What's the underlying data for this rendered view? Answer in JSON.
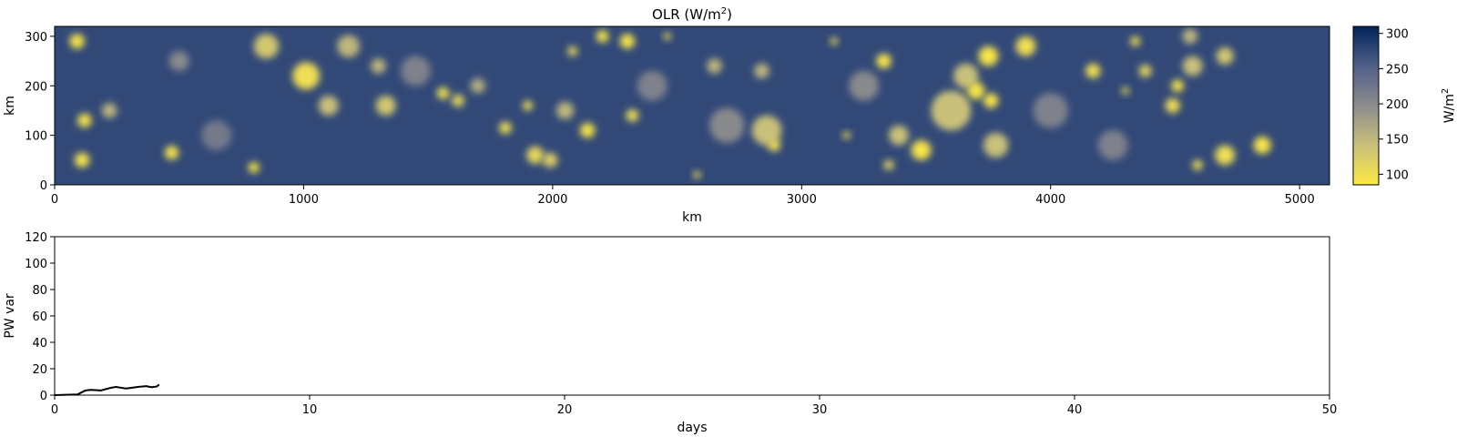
{
  "colors": {
    "colormap": [
      "#fde944",
      "#c8c07a",
      "#8c8c8c",
      "#50608a",
      "#00245a"
    ],
    "line": "#000000",
    "axes": "#000000",
    "background": "#ffffff"
  },
  "chart_data": [
    {
      "type": "heatmap",
      "title_main": "OLR (W/m",
      "title_sup": "2",
      "title_close": ")",
      "xlabel": "km",
      "ylabel": "km",
      "xlim": [
        0,
        5120
      ],
      "ylim": [
        0,
        320
      ],
      "xticks": [
        "0",
        "1000",
        "2000",
        "3000",
        "4000",
        "5000"
      ],
      "yticks": [
        "0",
        "100",
        "200",
        "300"
      ],
      "colorbar": {
        "label_main": "W/m",
        "label_sup": "2",
        "range": [
          85,
          310
        ],
        "ticks": [
          "100",
          "150",
          "200",
          "250",
          "300"
        ],
        "tick_values": [
          100,
          150,
          200,
          250,
          300
        ]
      },
      "background_value": 275,
      "clouds": [
        [
          90,
          290,
          30,
          90
        ],
        [
          120,
          130,
          28,
          90
        ],
        [
          110,
          50,
          30,
          90
        ],
        [
          220,
          150,
          30,
          150
        ],
        [
          470,
          65,
          28,
          90
        ],
        [
          800,
          35,
          22,
          90
        ],
        [
          850,
          280,
          50,
          130
        ],
        [
          1010,
          220,
          55,
          100
        ],
        [
          1100,
          160,
          40,
          140
        ],
        [
          1180,
          280,
          45,
          150
        ],
        [
          1300,
          240,
          30,
          150
        ],
        [
          1330,
          160,
          40,
          130
        ],
        [
          1560,
          185,
          25,
          100
        ],
        [
          1620,
          170,
          25,
          110
        ],
        [
          1700,
          200,
          30,
          160
        ],
        [
          1810,
          115,
          25,
          100
        ],
        [
          1900,
          160,
          20,
          100
        ],
        [
          1930,
          60,
          35,
          110
        ],
        [
          1990,
          50,
          30,
          120
        ],
        [
          2050,
          150,
          35,
          150
        ],
        [
          2080,
          270,
          20,
          110
        ],
        [
          2140,
          110,
          30,
          90
        ],
        [
          2200,
          300,
          25,
          90
        ],
        [
          2300,
          290,
          30,
          90
        ],
        [
          2320,
          140,
          25,
          100
        ],
        [
          2460,
          300,
          15,
          100
        ],
        [
          2580,
          20,
          15,
          100
        ],
        [
          2650,
          240,
          30,
          150
        ],
        [
          2840,
          230,
          30,
          150
        ],
        [
          2860,
          110,
          60,
          140
        ],
        [
          2890,
          80,
          25,
          100
        ],
        [
          3130,
          290,
          15,
          100
        ],
        [
          3180,
          100,
          15,
          100
        ],
        [
          3330,
          250,
          30,
          90
        ],
        [
          3350,
          40,
          20,
          110
        ],
        [
          3390,
          100,
          40,
          140
        ],
        [
          3480,
          70,
          40,
          90
        ],
        [
          3600,
          150,
          80,
          140
        ],
        [
          3660,
          220,
          50,
          140
        ],
        [
          3700,
          190,
          35,
          90
        ],
        [
          3750,
          260,
          40,
          90
        ],
        [
          3760,
          170,
          30,
          90
        ],
        [
          3780,
          80,
          50,
          140
        ],
        [
          3900,
          280,
          40,
          100
        ],
        [
          4170,
          230,
          30,
          100
        ],
        [
          4300,
          190,
          15,
          100
        ],
        [
          4340,
          290,
          20,
          100
        ],
        [
          4380,
          230,
          25,
          110
        ],
        [
          4490,
          160,
          30,
          100
        ],
        [
          4510,
          200,
          25,
          90
        ],
        [
          4560,
          300,
          30,
          150
        ],
        [
          4570,
          240,
          40,
          140
        ],
        [
          4590,
          40,
          20,
          90
        ],
        [
          4700,
          260,
          35,
          130
        ],
        [
          4700,
          60,
          40,
          100
        ],
        [
          4850,
          80,
          35,
          90
        ],
        [
          500,
          250,
          40,
          200
        ],
        [
          1450,
          230,
          60,
          210
        ],
        [
          2700,
          120,
          70,
          200
        ],
        [
          3250,
          200,
          60,
          200
        ],
        [
          4000,
          150,
          70,
          210
        ],
        [
          650,
          100,
          60,
          220
        ],
        [
          2400,
          200,
          60,
          210
        ],
        [
          4250,
          80,
          60,
          210
        ]
      ]
    },
    {
      "type": "line",
      "xlabel": "days",
      "ylabel": "PW var",
      "xlim": [
        0,
        50
      ],
      "ylim": [
        0,
        120
      ],
      "xticks": [
        "0",
        "10",
        "20",
        "30",
        "40",
        "50"
      ],
      "yticks": [
        "0",
        "20",
        "40",
        "60",
        "80",
        "100",
        "120"
      ],
      "series": [
        {
          "x": [
            0,
            0.3,
            0.6,
            0.9,
            1.0,
            1.2,
            1.4,
            1.6,
            1.8,
            2.0,
            2.2,
            2.4,
            2.6,
            2.8,
            3.0,
            3.2,
            3.4,
            3.6,
            3.8,
            4.0,
            4.1
          ],
          "values": [
            0,
            0.2,
            0.3,
            0.5,
            1.5,
            3.5,
            4.0,
            3.8,
            3.5,
            4.5,
            5.5,
            6.2,
            5.6,
            5.0,
            5.5,
            6.0,
            6.5,
            6.8,
            6.0,
            6.5,
            8.0
          ]
        }
      ]
    }
  ]
}
